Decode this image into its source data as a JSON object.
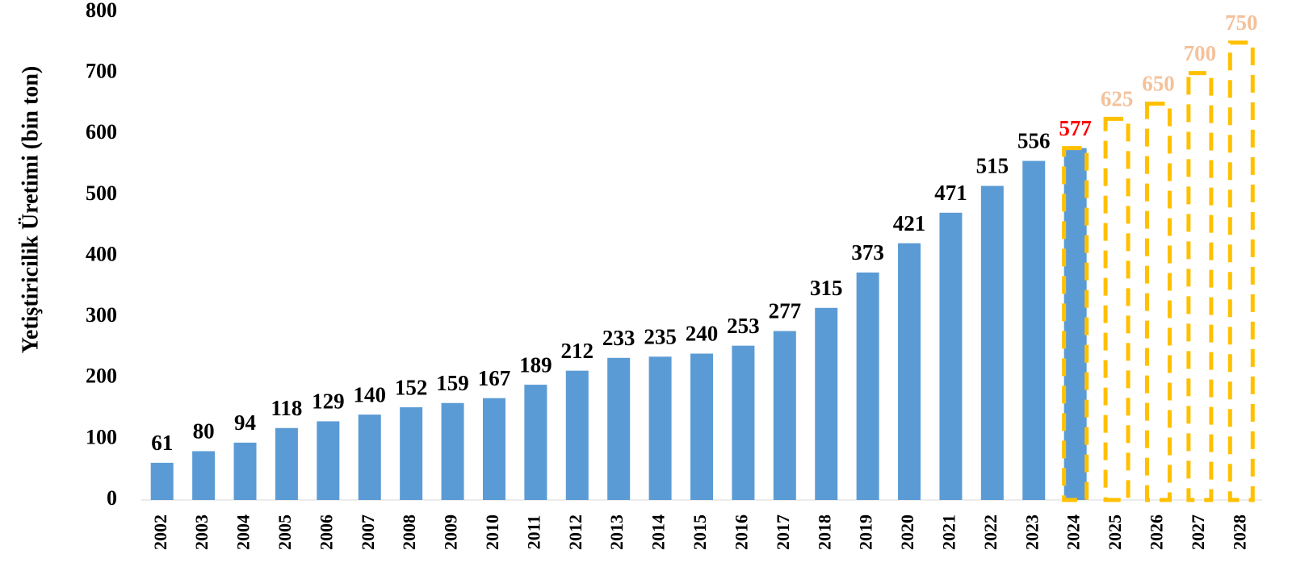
{
  "chart_data": {
    "type": "bar",
    "y_axis_label": "Yetiştiricilik Üretimi (bin ton)",
    "categories": [
      "2002",
      "2003",
      "2004",
      "2005",
      "2006",
      "2007",
      "2008",
      "2009",
      "2010",
      "2011",
      "2012",
      "2013",
      "2014",
      "2015",
      "2016",
      "2017",
      "2018",
      "2019",
      "2020",
      "2021",
      "2022",
      "2023",
      "2024",
      "2025",
      "2026",
      "2027",
      "2028"
    ],
    "values": [
      61,
      80,
      94,
      118,
      129,
      140,
      152,
      159,
      167,
      189,
      212,
      233,
      235,
      240,
      253,
      277,
      315,
      373,
      421,
      471,
      515,
      556,
      577,
      625,
      650,
      700,
      750
    ],
    "bar_colors": [
      "#5b9bd5",
      "#5b9bd5",
      "#5b9bd5",
      "#5b9bd5",
      "#5b9bd5",
      "#5b9bd5",
      "#5b9bd5",
      "#5b9bd5",
      "#5b9bd5",
      "#5b9bd5",
      "#5b9bd5",
      "#5b9bd5",
      "#5b9bd5",
      "#5b9bd5",
      "#5b9bd5",
      "#5b9bd5",
      "#5b9bd5",
      "#5b9bd5",
      "#5b9bd5",
      "#5b9bd5",
      "#5b9bd5",
      "#5b9bd5",
      "#5b9bd5",
      null,
      null,
      null,
      null
    ],
    "outline_colors": [
      null,
      null,
      null,
      null,
      null,
      null,
      null,
      null,
      null,
      null,
      null,
      null,
      null,
      null,
      null,
      null,
      null,
      null,
      null,
      null,
      null,
      null,
      "#ffc000",
      "#ffc000",
      "#ffc000",
      "#ffc000",
      "#ffc000"
    ],
    "label_colors": [
      "#000",
      "#000",
      "#000",
      "#000",
      "#000",
      "#000",
      "#000",
      "#000",
      "#000",
      "#000",
      "#000",
      "#000",
      "#000",
      "#000",
      "#000",
      "#000",
      "#000",
      "#000",
      "#000",
      "#000",
      "#000",
      "#000",
      "#ff0000",
      "#f4c19a",
      "#f4c19a",
      "#f4c19a",
      "#f4c19a"
    ],
    "ylim": [
      0,
      800
    ],
    "yticks": [
      0,
      100,
      200,
      300,
      400,
      500,
      600,
      700,
      800
    ],
    "grid": false
  }
}
